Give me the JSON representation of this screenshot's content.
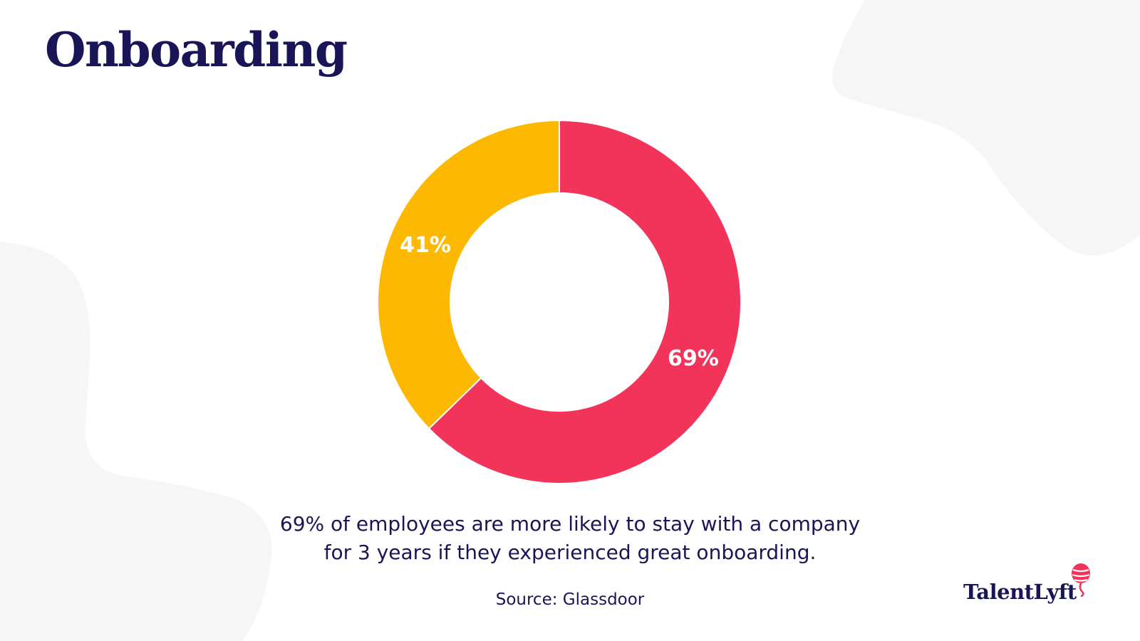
{
  "title": "Onboarding",
  "chart_data": {
    "type": "pie",
    "labels": [
      "69%",
      "41%"
    ],
    "values": [
      69,
      41
    ],
    "colors": [
      "#f2335a",
      "#fdb902"
    ],
    "donut": true
  },
  "caption": {
    "line1": "69% of employees are more likely to stay with a company",
    "line2": "for 3 years if they experienced great onboarding."
  },
  "source": "Source: Glassdoor",
  "logo": {
    "text": "TalentLyft",
    "icon": "balloon-icon"
  },
  "colors": {
    "title": "#1a1557",
    "background_shape": "#f6f6f7"
  }
}
